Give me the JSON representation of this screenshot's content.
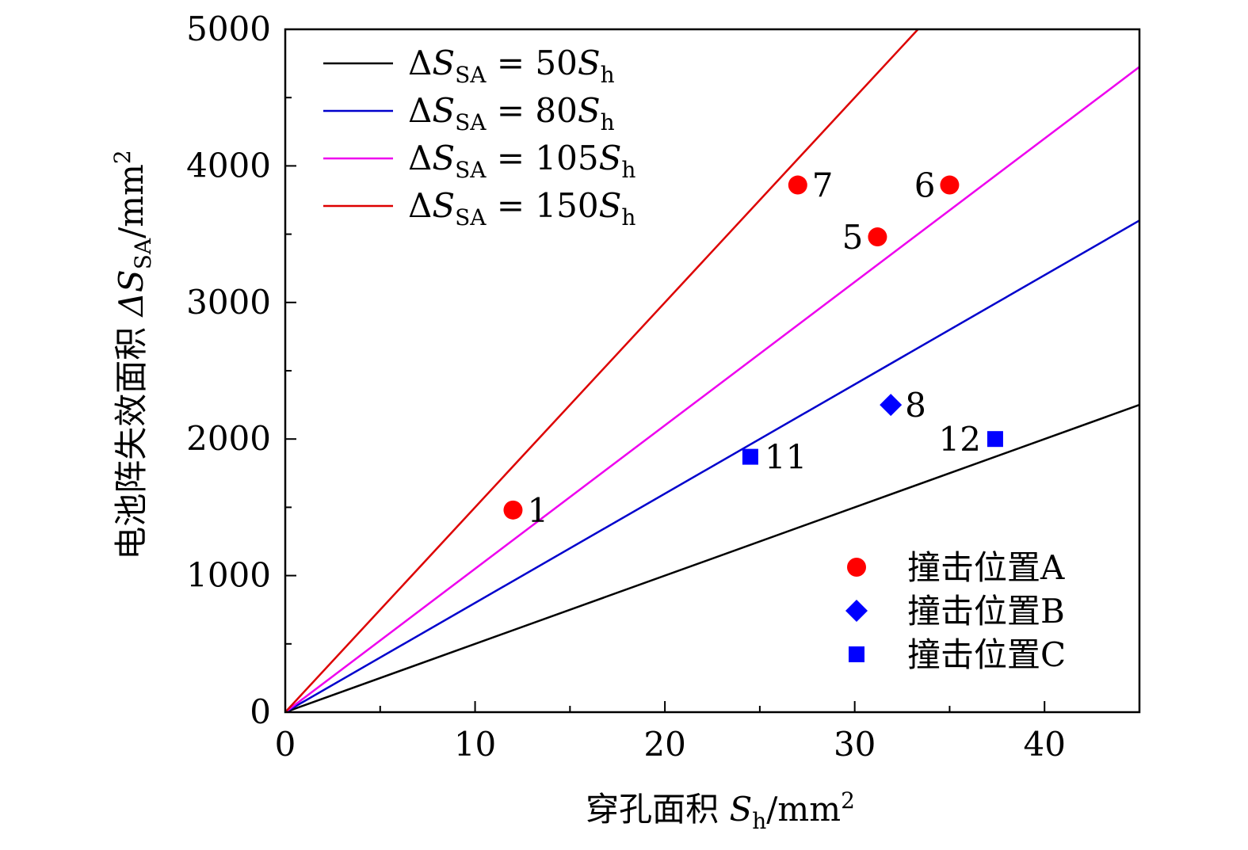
{
  "chart_data": {
    "type": "scatter",
    "xlabel": {
      "prefix": "穿孔面积 ",
      "var": "S",
      "sub": "h",
      "unit": "/mm",
      "sup": "2"
    },
    "ylabel": {
      "prefix": "电池阵失效面积 ",
      "var": "ΔS",
      "sub": "SA",
      "unit": "/mm",
      "sup": "2"
    },
    "xlim": [
      0,
      45
    ],
    "ylim": [
      0,
      5000
    ],
    "x_ticks": [
      0,
      10,
      20,
      30,
      40
    ],
    "y_ticks": [
      0,
      1000,
      2000,
      3000,
      4000,
      5000
    ],
    "x_tick_labels": [
      "0",
      "10",
      "20",
      "30",
      "40"
    ],
    "y_tick_labels": [
      "0",
      "1000",
      "2000",
      "3000",
      "4000",
      "5000"
    ],
    "grid": false,
    "lines": [
      {
        "name_prefix": "ΔS",
        "name_sub": "SA",
        "name_mid": " = 50",
        "name_var": "S",
        "name_var_sub": "h",
        "slope": 50,
        "color": "#000000"
      },
      {
        "name_prefix": "ΔS",
        "name_sub": "SA",
        "name_mid": " = 80",
        "name_var": "S",
        "name_var_sub": "h",
        "slope": 80,
        "color": "#0000cc"
      },
      {
        "name_prefix": "ΔS",
        "name_sub": "SA",
        "name_mid": " = 105",
        "name_var": "S",
        "name_var_sub": "h",
        "slope": 105,
        "color": "#ee00ee"
      },
      {
        "name_prefix": "ΔS",
        "name_sub": "SA",
        "name_mid": " = 150",
        "name_var": "S",
        "name_var_sub": "h",
        "slope": 150,
        "color": "#dd0000"
      }
    ],
    "lines_legend_position": "top-left",
    "series": [
      {
        "name": "撞击位置A",
        "marker": "circle",
        "color": "#ff0000",
        "points": [
          {
            "x": 12.0,
            "y": 1480,
            "label": "1",
            "label_side": "right"
          },
          {
            "x": 27.0,
            "y": 3860,
            "label": "7",
            "label_side": "right"
          },
          {
            "x": 31.2,
            "y": 3480,
            "label": "5",
            "label_side": "left"
          },
          {
            "x": 35.0,
            "y": 3860,
            "label": "6",
            "label_side": "left"
          }
        ]
      },
      {
        "name": "撞击位置B",
        "marker": "diamond",
        "color": "#0000ff",
        "points": [
          {
            "x": 31.9,
            "y": 2250,
            "label": "8",
            "label_side": "right"
          }
        ]
      },
      {
        "name": "撞击位置C",
        "marker": "square",
        "color": "#0000ff",
        "points": [
          {
            "x": 24.5,
            "y": 1870,
            "label": "11",
            "label_side": "right"
          },
          {
            "x": 37.4,
            "y": 2000,
            "label": "12",
            "label_side": "left"
          }
        ]
      }
    ],
    "markers_legend_position": "bottom-right"
  }
}
